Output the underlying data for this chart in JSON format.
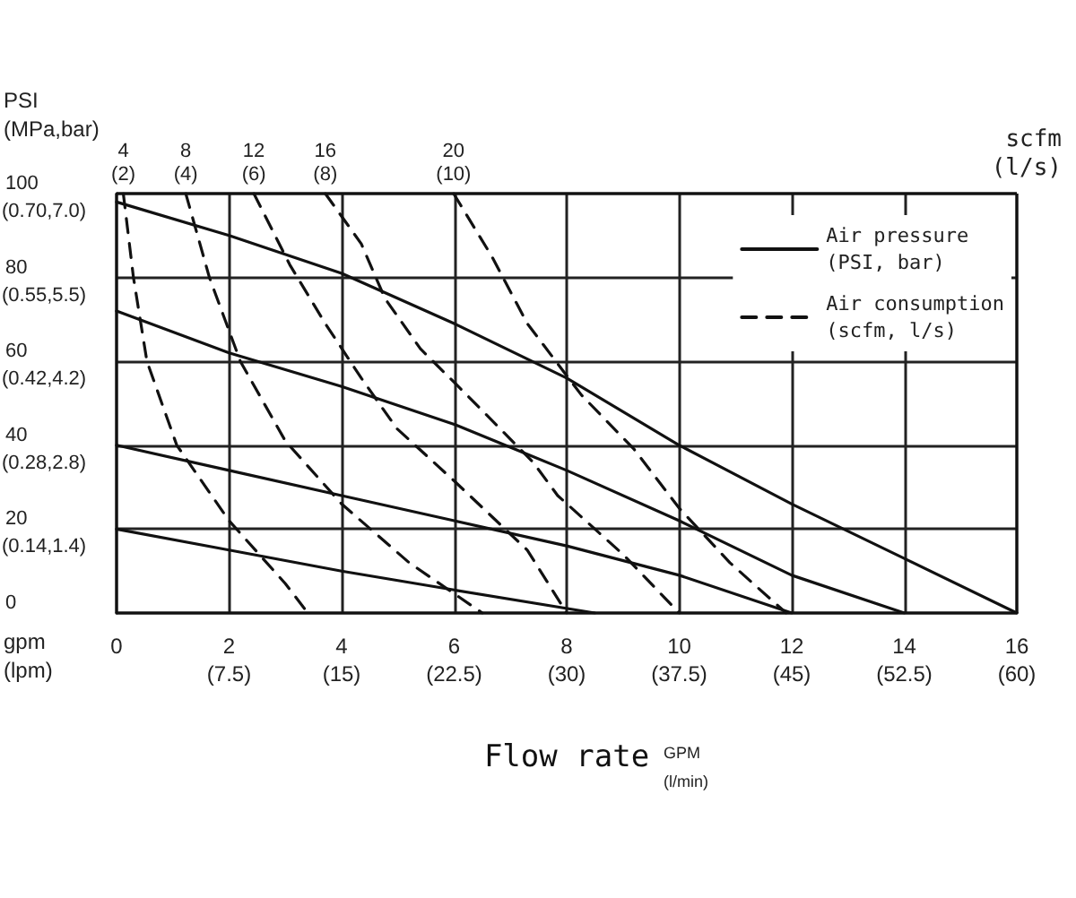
{
  "chart_data": {
    "type": "line",
    "xlabel": "Flow rate",
    "ylabel": "PSI\n(MPa,bar)",
    "xlim": [
      0,
      16
    ],
    "ylim": [
      0,
      100
    ],
    "xticks": [
      0,
      2,
      4,
      6,
      8,
      10,
      12,
      14,
      16
    ],
    "x2lim": [
      0,
      60
    ],
    "x2ticks": [
      {
        "value": 7.5,
        "label": "(7.5)"
      },
      {
        "value": 15,
        "label": "(15)"
      },
      {
        "value": 22.5,
        "label": "(22.5)"
      },
      {
        "value": 30,
        "label": "(30)"
      },
      {
        "value": 37.5,
        "label": "(37.5)"
      },
      {
        "value": 45,
        "label": "(45)"
      },
      {
        "value": 52.5,
        "label": "(52.5)"
      },
      {
        "value": 60,
        "label": "(60)"
      }
    ],
    "yticks": [
      0,
      20,
      40,
      60,
      80,
      100
    ],
    "grid": true,
    "legend": "top right",
    "marker": "none",
    "series": [
      {
        "name": "Air pressure\n(PSI, bar)",
        "color": "#111111",
        "line_style": "solid",
        "x": [
          0,
          2,
          4,
          6,
          8,
          10,
          12,
          14,
          16
        ],
        "values": [
          98,
          90,
          81,
          69,
          56,
          40,
          26,
          13,
          0
        ]
      },
      {
        "color": "#111111",
        "line_style": "solid",
        "x": [
          0,
          2,
          4,
          6,
          8,
          10,
          12,
          14
        ],
        "values": [
          72,
          62,
          54,
          45,
          34,
          22,
          9,
          0
        ]
      },
      {
        "color": "#111111",
        "line_style": "solid",
        "x": [
          0,
          2,
          4,
          6,
          8,
          10,
          12
        ],
        "values": [
          40,
          34,
          28,
          22,
          16,
          9,
          0
        ]
      },
      {
        "color": "#111111",
        "line_style": "solid",
        "x": [
          0,
          2,
          4,
          6,
          8.5
        ],
        "values": [
          20,
          15,
          10,
          5.5,
          0
        ]
      },
      {
        "name": "Air consumption\n(scfm, l/s)",
        "color": "#111111",
        "line_style": "dashed",
        "x": [
          0.12,
          0.3,
          0.54,
          1.07,
          2,
          3,
          3.4
        ],
        "values": [
          100,
          80,
          60,
          40,
          22,
          7,
          0
        ]
      },
      {
        "color": "#111111",
        "line_style": "dashed",
        "x": [
          1.23,
          1.65,
          2.2,
          3,
          4,
          5.2,
          6.5
        ],
        "values": [
          100,
          80,
          60,
          41,
          26,
          12,
          0
        ]
      },
      {
        "color": "#111111",
        "line_style": "dashed",
        "x": [
          2.44,
          3.08,
          3.71,
          4.35,
          4.98,
          6.04,
          7.3,
          8
        ],
        "values": [
          100,
          83,
          69,
          56,
          44,
          31,
          15,
          0
        ]
      },
      {
        "color": "#111111",
        "line_style": "dashed",
        "x": [
          3.71,
          4.35,
          4.77,
          5.4,
          6.15,
          7.4,
          7.84,
          9,
          10
        ],
        "values": [
          100,
          88,
          75,
          63,
          53,
          36,
          28,
          14,
          0
        ]
      },
      {
        "color": "#111111",
        "line_style": "dashed",
        "x": [
          5.99,
          6.67,
          7.3,
          8.26,
          9.2,
          10,
          10.9,
          11.9
        ],
        "values": [
          100,
          85,
          69,
          52,
          39,
          25,
          12,
          0
        ]
      }
    ],
    "annotations": [
      {
        "text": "4\n(2)",
        "x": 0.12,
        "y": 100
      },
      {
        "text": "8\n(4)",
        "x": 1.23,
        "y": 100
      },
      {
        "text": "12\n(6)",
        "x": 2.44,
        "y": 100
      },
      {
        "text": "16\n(8)",
        "x": 3.71,
        "y": 100
      },
      {
        "text": "20\n(10)",
        "x": 5.99,
        "y": 100
      },
      "(0.70,7.0)",
      "(0.55,5.5)",
      "(0.42,4.2)",
      "(0.28,2.8)",
      "(0.14,1.4)",
      "scfm\n(l/s)",
      "gpm\n(lpm)",
      "GPM\n(l/min)"
    ]
  }
}
